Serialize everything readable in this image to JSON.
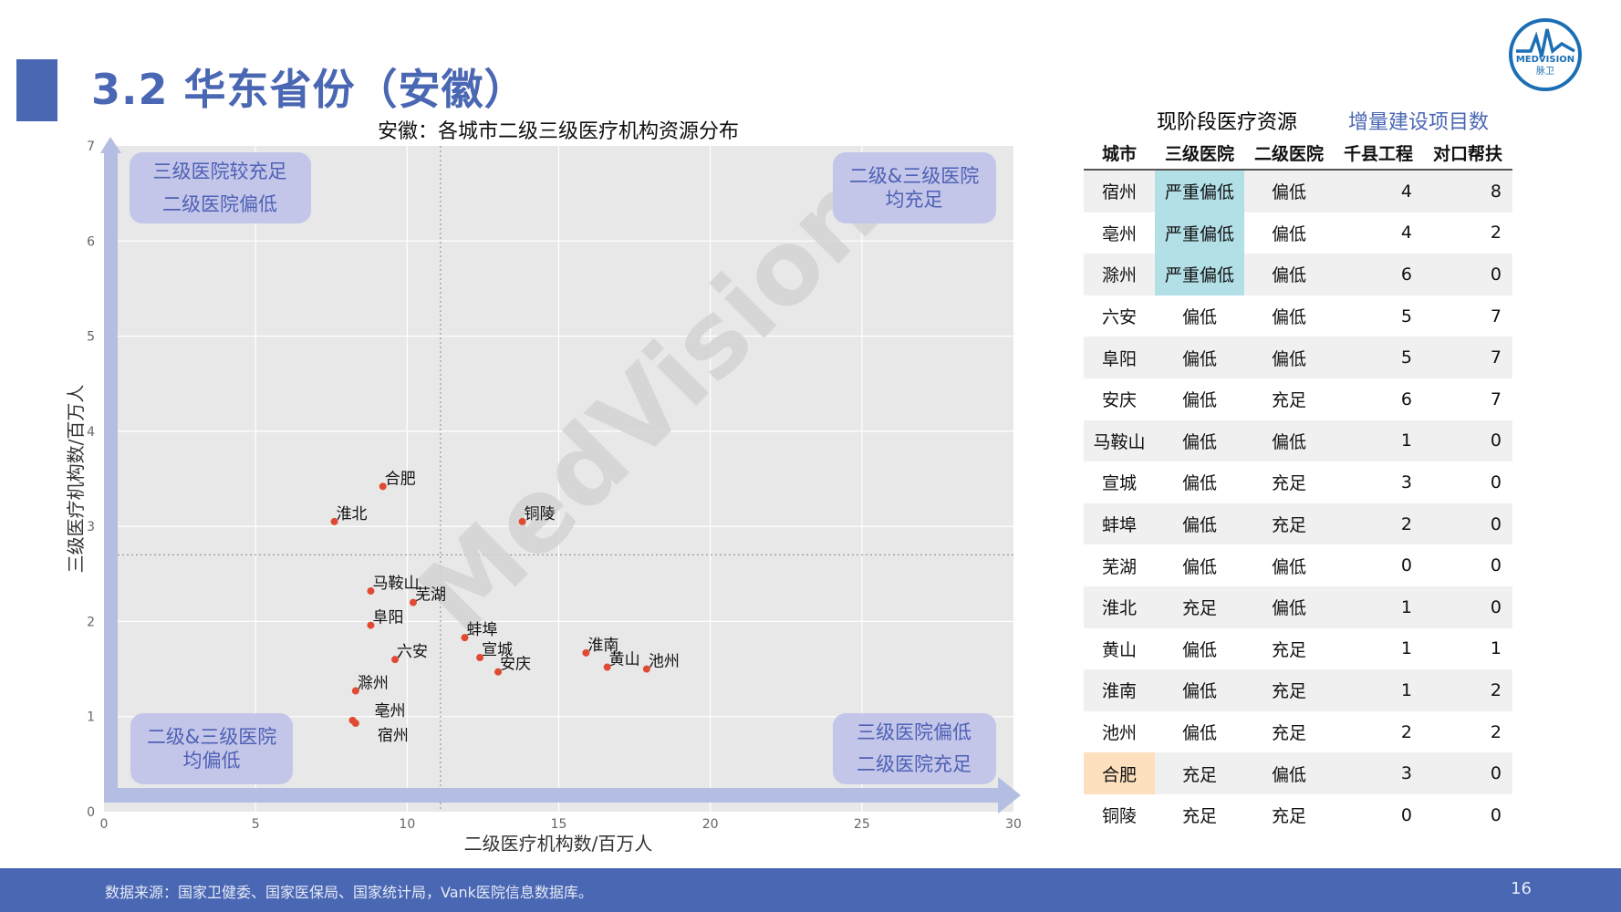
{
  "page": {
    "title": "3.2 华东省份（安徽）",
    "source": "数据来源：国家卫健委、国家医保局、国家统计局，Vank医院信息数据库。",
    "page_number": "16",
    "watermark": "MedVision",
    "logo_text": "MEDVISION",
    "logo_sub": "脉卫"
  },
  "colors": {
    "accent": "#4a67b3",
    "point": "#e04a32",
    "severe": "#b3dfe7",
    "highlight": "#fde0bd",
    "quadrant_box": "#c4c6e9",
    "plot_bg": "#e8e8e8"
  },
  "quadrants": {
    "top_left": [
      "三级医院较充足",
      "二级医院偏低"
    ],
    "top_right": [
      "二级&三级医院",
      "均充足"
    ],
    "bottom_left": [
      "二级&三级医院",
      "均偏低"
    ],
    "bottom_right": [
      "三级医院偏低",
      "二级医院充足"
    ]
  },
  "chart_data": {
    "type": "scatter",
    "title": "安徽：各城市二级三级医疗机构资源分布",
    "xlabel": "二级医疗机构数/百万人",
    "ylabel": "三级医疗机构数/百万人",
    "xlim": [
      0,
      30
    ],
    "ylim": [
      0,
      7
    ],
    "xticks": [
      0,
      5,
      10,
      15,
      20,
      25,
      30
    ],
    "yticks": [
      0,
      1,
      2,
      3,
      4,
      5,
      6,
      7
    ],
    "x_ref": 11.1,
    "y_ref": 2.7,
    "grid": true,
    "points": [
      {
        "label": "合肥",
        "x": 9.2,
        "y": 3.42
      },
      {
        "label": "淮北",
        "x": 7.6,
        "y": 3.05
      },
      {
        "label": "铜陵",
        "x": 13.8,
        "y": 3.05
      },
      {
        "label": "马鞍山",
        "x": 8.8,
        "y": 2.32
      },
      {
        "label": "芜湖",
        "x": 10.2,
        "y": 2.2
      },
      {
        "label": "阜阳",
        "x": 8.8,
        "y": 1.96
      },
      {
        "label": "蚌埠",
        "x": 11.9,
        "y": 1.83
      },
      {
        "label": "六安",
        "x": 9.6,
        "y": 1.6
      },
      {
        "label": "宣城",
        "x": 12.4,
        "y": 1.62
      },
      {
        "label": "安庆",
        "x": 13.0,
        "y": 1.47
      },
      {
        "label": "淮南",
        "x": 15.9,
        "y": 1.67
      },
      {
        "label": "黄山",
        "x": 16.6,
        "y": 1.52
      },
      {
        "label": "池州",
        "x": 17.9,
        "y": 1.5
      },
      {
        "label": "滁州",
        "x": 8.3,
        "y": 1.27
      },
      {
        "label": "亳州",
        "x": 8.2,
        "y": 0.96
      },
      {
        "label": "宿州",
        "x": 8.3,
        "y": 0.93
      }
    ]
  },
  "table": {
    "group_current": "现阶段医疗资源",
    "group_increment": "增量建设项目数",
    "headers": [
      "城市",
      "三级医院",
      "二级医院",
      "千县工程",
      "对口帮扶"
    ],
    "rows": [
      {
        "city": "宿州",
        "tier3": "严重偏低",
        "tier2": "偏低",
        "qx": "4",
        "dk": "8"
      },
      {
        "city": "亳州",
        "tier3": "严重偏低",
        "tier2": "偏低",
        "qx": "4",
        "dk": "2"
      },
      {
        "city": "滁州",
        "tier3": "严重偏低",
        "tier2": "偏低",
        "qx": "6",
        "dk": "0"
      },
      {
        "city": "六安",
        "tier3": "偏低",
        "tier2": "偏低",
        "qx": "5",
        "dk": "7"
      },
      {
        "city": "阜阳",
        "tier3": "偏低",
        "tier2": "偏低",
        "qx": "5",
        "dk": "7"
      },
      {
        "city": "安庆",
        "tier3": "偏低",
        "tier2": "充足",
        "qx": "6",
        "dk": "7"
      },
      {
        "city": "马鞍山",
        "tier3": "偏低",
        "tier2": "偏低",
        "qx": "1",
        "dk": "0"
      },
      {
        "city": "宣城",
        "tier3": "偏低",
        "tier2": "充足",
        "qx": "3",
        "dk": "0"
      },
      {
        "city": "蚌埠",
        "tier3": "偏低",
        "tier2": "充足",
        "qx": "2",
        "dk": "0"
      },
      {
        "city": "芜湖",
        "tier3": "偏低",
        "tier2": "偏低",
        "qx": "0",
        "dk": "0"
      },
      {
        "city": "淮北",
        "tier3": "充足",
        "tier2": "偏低",
        "qx": "1",
        "dk": "0"
      },
      {
        "city": "黄山",
        "tier3": "偏低",
        "tier2": "充足",
        "qx": "1",
        "dk": "1"
      },
      {
        "city": "淮南",
        "tier3": "偏低",
        "tier2": "充足",
        "qx": "1",
        "dk": "2"
      },
      {
        "city": "池州",
        "tier3": "偏低",
        "tier2": "充足",
        "qx": "2",
        "dk": "2"
      },
      {
        "city": "合肥",
        "tier3": "充足",
        "tier2": "偏低",
        "qx": "3",
        "dk": "0"
      },
      {
        "city": "铜陵",
        "tier3": "充足",
        "tier2": "充足",
        "qx": "0",
        "dk": "0"
      }
    ]
  }
}
